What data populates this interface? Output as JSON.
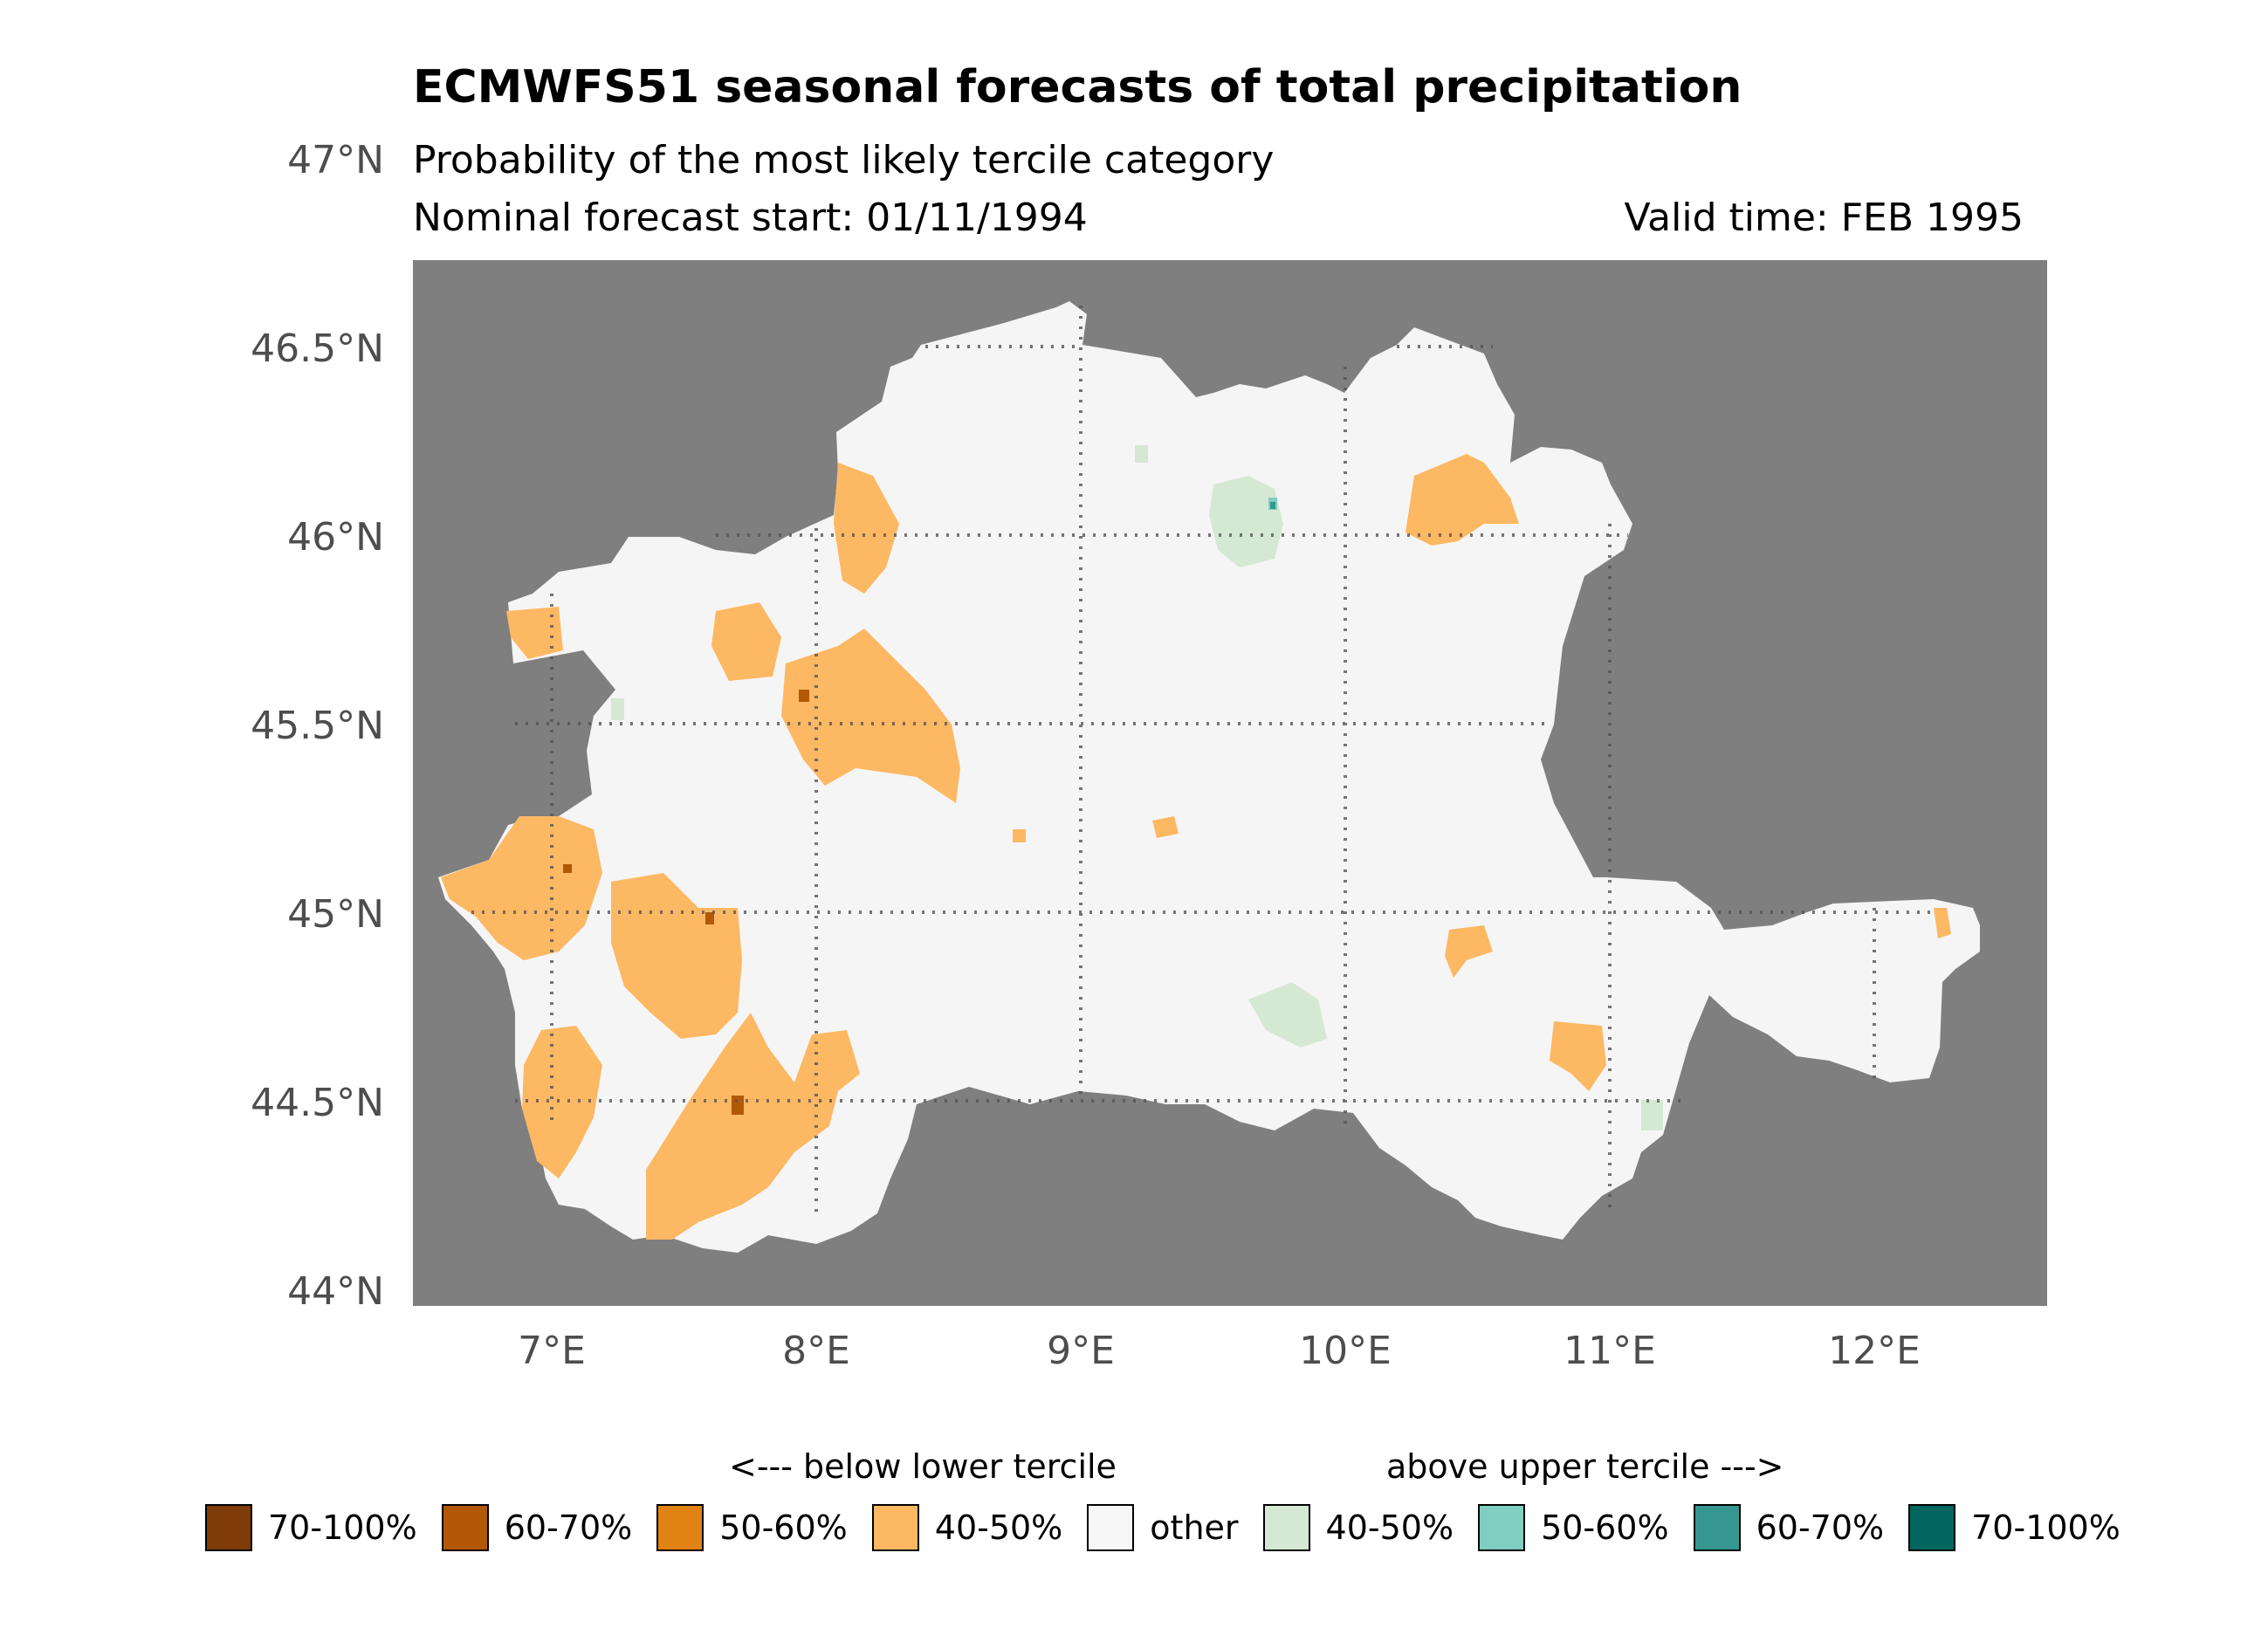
{
  "title": "ECMWFS51 seasonal forecasts of total precipitation",
  "subtitle": "Probability of the most likely tercile category",
  "forecast_start": "Nominal forecast start: 01/11/1994",
  "valid_time": "Valid time: FEB 1995",
  "map": {
    "background_color": "#7f7f7f",
    "land_color": "#f5f5f5",
    "lon_ticks": [
      "7°E",
      "8°E",
      "9°E",
      "10°E",
      "11°E",
      "12°E"
    ],
    "lat_ticks": [
      "47°N",
      "46.5°N",
      "46°N",
      "45.5°N",
      "45°N",
      "44.5°N",
      "44°N"
    ],
    "lon_range": [
      6.5,
      12.7
    ],
    "lat_range": [
      44.05,
      46.72
    ],
    "graticule": "dotted"
  },
  "legend": {
    "below_caption": "<--- below lower tercile",
    "above_caption": "above upper tercile --->",
    "items": [
      {
        "label": "70-100%",
        "color": "#7f3b08"
      },
      {
        "label": "60-70%",
        "color": "#b35806"
      },
      {
        "label": "50-60%",
        "color": "#e08214"
      },
      {
        "label": "40-50%",
        "color": "#fdb863"
      },
      {
        "label": "other",
        "color": "#f7f7f7"
      },
      {
        "label": "40-50%",
        "color": "#d5e8d4"
      },
      {
        "label": "50-60%",
        "color": "#80cdc1"
      },
      {
        "label": "60-70%",
        "color": "#35978f"
      },
      {
        "label": "70-100%",
        "color": "#01665e"
      }
    ]
  }
}
